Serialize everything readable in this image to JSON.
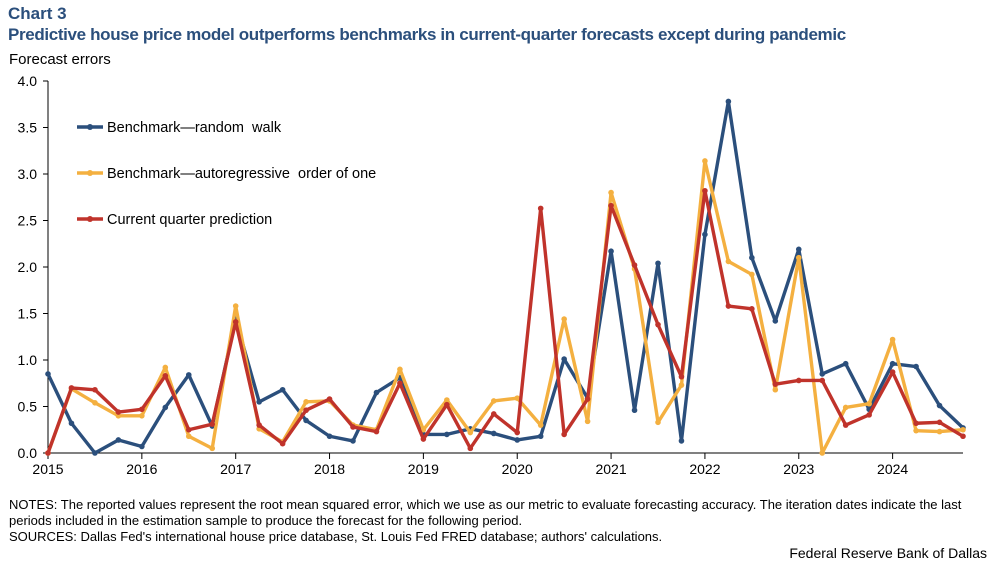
{
  "header": {
    "chart_number": "Chart 3",
    "title": "Predictive house price model outperforms benchmarks in current-quarter forecasts except during pandemic"
  },
  "chart_data": {
    "type": "line",
    "ylabel": "Forecast errors",
    "ylim": [
      0,
      4.0
    ],
    "yticks": [
      "0.0",
      "0.5",
      "1.0",
      "1.5",
      "2.0",
      "2.5",
      "3.0",
      "3.5",
      "4.0"
    ],
    "xlim": [
      2015.0,
      2024.75
    ],
    "xticks": [
      "2015",
      "2016",
      "2017",
      "2018",
      "2019",
      "2020",
      "2021",
      "2022",
      "2023",
      "2024"
    ],
    "x": [
      2015.0,
      2015.25,
      2015.5,
      2015.75,
      2016.0,
      2016.25,
      2016.5,
      2016.75,
      2017.0,
      2017.25,
      2017.5,
      2017.75,
      2018.0,
      2018.25,
      2018.5,
      2018.75,
      2019.0,
      2019.25,
      2019.5,
      2019.75,
      2020.0,
      2020.25,
      2020.5,
      2020.75,
      2021.0,
      2021.25,
      2021.5,
      2021.75,
      2022.0,
      2022.25,
      2022.5,
      2022.75,
      2023.0,
      2023.25,
      2023.5,
      2023.75,
      2024.0,
      2024.25,
      2024.5,
      2024.75
    ],
    "legend_position": "top-left",
    "series": [
      {
        "name": "Benchmark—random  walk",
        "color": "#2b4f7c",
        "values": [
          0.85,
          0.32,
          0.0,
          0.14,
          0.07,
          0.49,
          0.84,
          0.29,
          1.44,
          0.55,
          0.68,
          0.35,
          0.18,
          0.13,
          0.65,
          0.81,
          0.2,
          0.2,
          0.26,
          0.21,
          0.14,
          0.18,
          1.01,
          0.59,
          2.17,
          0.46,
          2.04,
          0.13,
          2.35,
          3.78,
          2.1,
          1.42,
          2.19,
          0.85,
          0.96,
          0.47,
          0.96,
          0.93,
          0.51,
          0.27
        ]
      },
      {
        "name": "Benchmark—autoregressive  order of one",
        "color": "#f4b040",
        "values": [
          0.0,
          0.69,
          0.54,
          0.4,
          0.4,
          0.92,
          0.18,
          0.05,
          1.58,
          0.26,
          0.12,
          0.55,
          0.56,
          0.3,
          0.25,
          0.9,
          0.25,
          0.57,
          0.22,
          0.56,
          0.59,
          0.3,
          1.44,
          0.34,
          2.8,
          1.98,
          0.33,
          0.73,
          3.14,
          2.06,
          1.92,
          0.68,
          2.1,
          0.0,
          0.49,
          0.53,
          1.22,
          0.24,
          0.23,
          0.25
        ]
      },
      {
        "name": "Current quarter prediction",
        "color": "#c0332b",
        "values": [
          0.0,
          0.7,
          0.68,
          0.44,
          0.47,
          0.83,
          0.25,
          0.31,
          1.41,
          0.3,
          0.1,
          0.46,
          0.58,
          0.28,
          0.23,
          0.75,
          0.15,
          0.52,
          0.05,
          0.42,
          0.22,
          2.63,
          0.2,
          0.58,
          2.66,
          2.02,
          1.38,
          0.82,
          2.82,
          1.58,
          1.55,
          0.74,
          0.78,
          0.78,
          0.3,
          0.41,
          0.87,
          0.32,
          0.33,
          0.18
        ]
      }
    ]
  },
  "notes": {
    "notes_text": "NOTES: The reported values represent the root mean squared error, which we use as our metric to evaluate forecasting accuracy. The iteration dates indicate the last periods included in the estimation sample to produce the forecast for the following period.",
    "sources_text": "SOURCES: Dallas Fed's international house price database, St. Louis Fed FRED database; authors' calculations."
  },
  "footer": {
    "credit": "Federal Reserve Bank of Dallas"
  }
}
